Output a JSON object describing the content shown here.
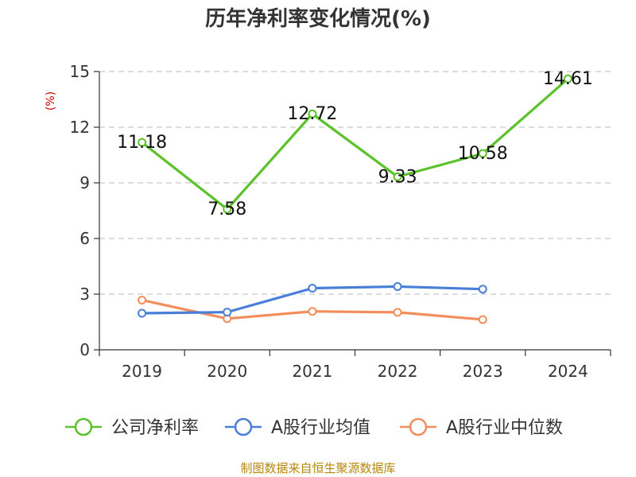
{
  "chart_data": {
    "type": "line",
    "title": "历年净利率变化情况(%)",
    "ylabel": "(%)",
    "categories": [
      "2019",
      "2020",
      "2021",
      "2022",
      "2023",
      "2024"
    ],
    "ylim": [
      0,
      15
    ],
    "yticks": [
      0,
      3,
      6,
      9,
      12,
      15
    ],
    "grid": true,
    "legend_position": "bottom",
    "series": [
      {
        "name": "公司净利率",
        "color": "#5cc22b",
        "values": [
          11.18,
          7.58,
          12.72,
          9.33,
          10.58,
          14.61
        ],
        "labels": [
          "11.18",
          "7.58",
          "12.72",
          "9.33",
          "10.58",
          "14.61"
        ]
      },
      {
        "name": "A股行业均值",
        "color": "#4a7fd9",
        "values": [
          1.97,
          2.03,
          3.32,
          3.41,
          3.27,
          null
        ]
      },
      {
        "name": "A股行业中位数",
        "color": "#f28e5b",
        "values": [
          2.68,
          1.68,
          2.07,
          2.02,
          1.63,
          null
        ]
      }
    ],
    "source": "制图数据来自恒生聚源数据库"
  }
}
